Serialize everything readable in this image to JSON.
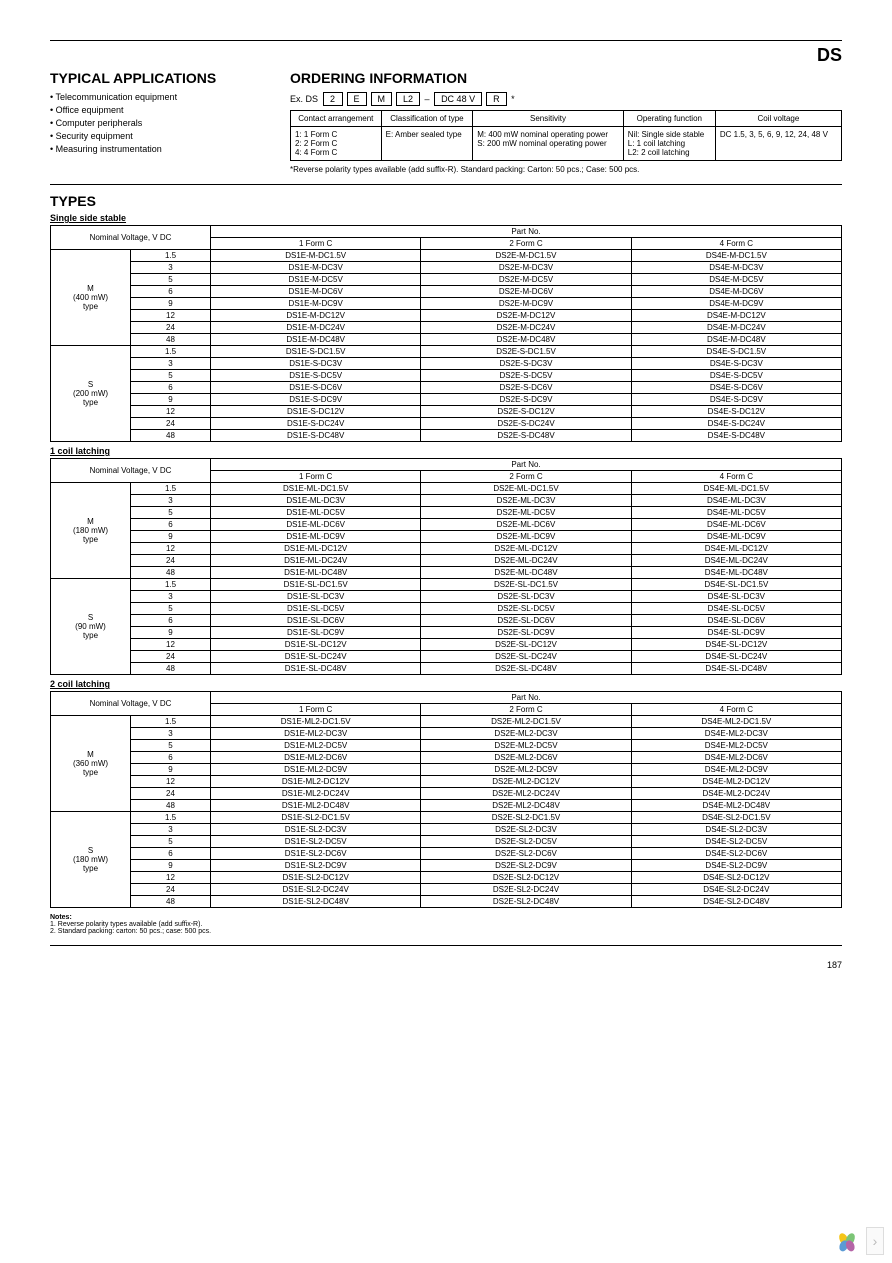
{
  "header": {
    "series": "DS",
    "page_number": "187"
  },
  "applications": {
    "title": "TYPICAL APPLICATIONS",
    "items": [
      "Telecommunication equipment",
      "Office equipment",
      "Computer peripherals",
      "Security equipment",
      "Measuring instrumentation"
    ]
  },
  "ordering": {
    "title": "ORDERING INFORMATION",
    "example_prefix": "Ex. DS",
    "example_boxes": [
      "2",
      "E",
      "M",
      "L2",
      "DC 48 V",
      "R"
    ],
    "example_dash": "–",
    "example_star": "*",
    "columns": [
      "Contact arrangement",
      "Classification of type",
      "Sensitivity",
      "Operating function",
      "Coil voltage"
    ],
    "rows": [
      "1: 1 Form C\n2: 2 Form C\n4: 4 Form C",
      "E: Amber sealed type",
      "M: 400 mW nominal operating power\nS: 200 mW nominal operating power",
      "Nil: Single side stable\nL: 1 coil latching\nL2: 2 coil latching",
      "DC 1.5, 3, 5, 6, 9, 12, 24, 48 V"
    ],
    "footnote": "*Reverse polarity types available (add suffix-R).   Standard packing: Carton: 50 pcs.; Case: 500 pcs."
  },
  "types_title": "TYPES",
  "voltages": [
    "1.5",
    "3",
    "5",
    "6",
    "9",
    "12",
    "24",
    "48"
  ],
  "forms": [
    "1 Form C",
    "2 Form C",
    "4 Form C"
  ],
  "partno_label": "Part No.",
  "nominal_label": "Nominal Voltage, V DC",
  "sections": [
    {
      "title": "Single side stable",
      "groups": [
        {
          "type_label": "M\n(400 mW)\ntype",
          "prefix1": "DS1E-M-DC",
          "prefix2": "DS2E-M-DC",
          "prefix4": "DS4E-M-DC"
        },
        {
          "type_label": "S\n(200 mW)\ntype",
          "prefix1": "DS1E-S-DC",
          "prefix2": "DS2E-S-DC",
          "prefix4": "DS4E-S-DC"
        }
      ]
    },
    {
      "title": "1 coil latching",
      "groups": [
        {
          "type_label": "M\n(180 mW)\ntype",
          "prefix1": "DS1E-ML-DC",
          "prefix2": "DS2E-ML-DC",
          "prefix4": "DS4E-ML-DC"
        },
        {
          "type_label": "S\n(90 mW)\ntype",
          "prefix1": "DS1E-SL-DC",
          "prefix2": "DS2E-SL-DC",
          "prefix4": "DS4E-SL-DC"
        }
      ]
    },
    {
      "title": "2 coil latching",
      "groups": [
        {
          "type_label": "M\n(360 mW)\ntype",
          "prefix1": "DS1E-ML2-DC",
          "prefix2": "DS2E-ML2-DC",
          "prefix4": "DS4E-ML2-DC"
        },
        {
          "type_label": "S\n(180 mW)\ntype",
          "prefix1": "DS1E-SL2-DC",
          "prefix2": "DS2E-SL2-DC",
          "prefix4": "DS4E-SL2-DC"
        }
      ]
    }
  ],
  "notes": {
    "heading": "Notes:",
    "lines": [
      "1. Reverse polarity types available (add suffix-R).",
      "2. Standard packing: carton: 50 pcs.; case: 500 pcs."
    ]
  },
  "volt_suffix": "V"
}
